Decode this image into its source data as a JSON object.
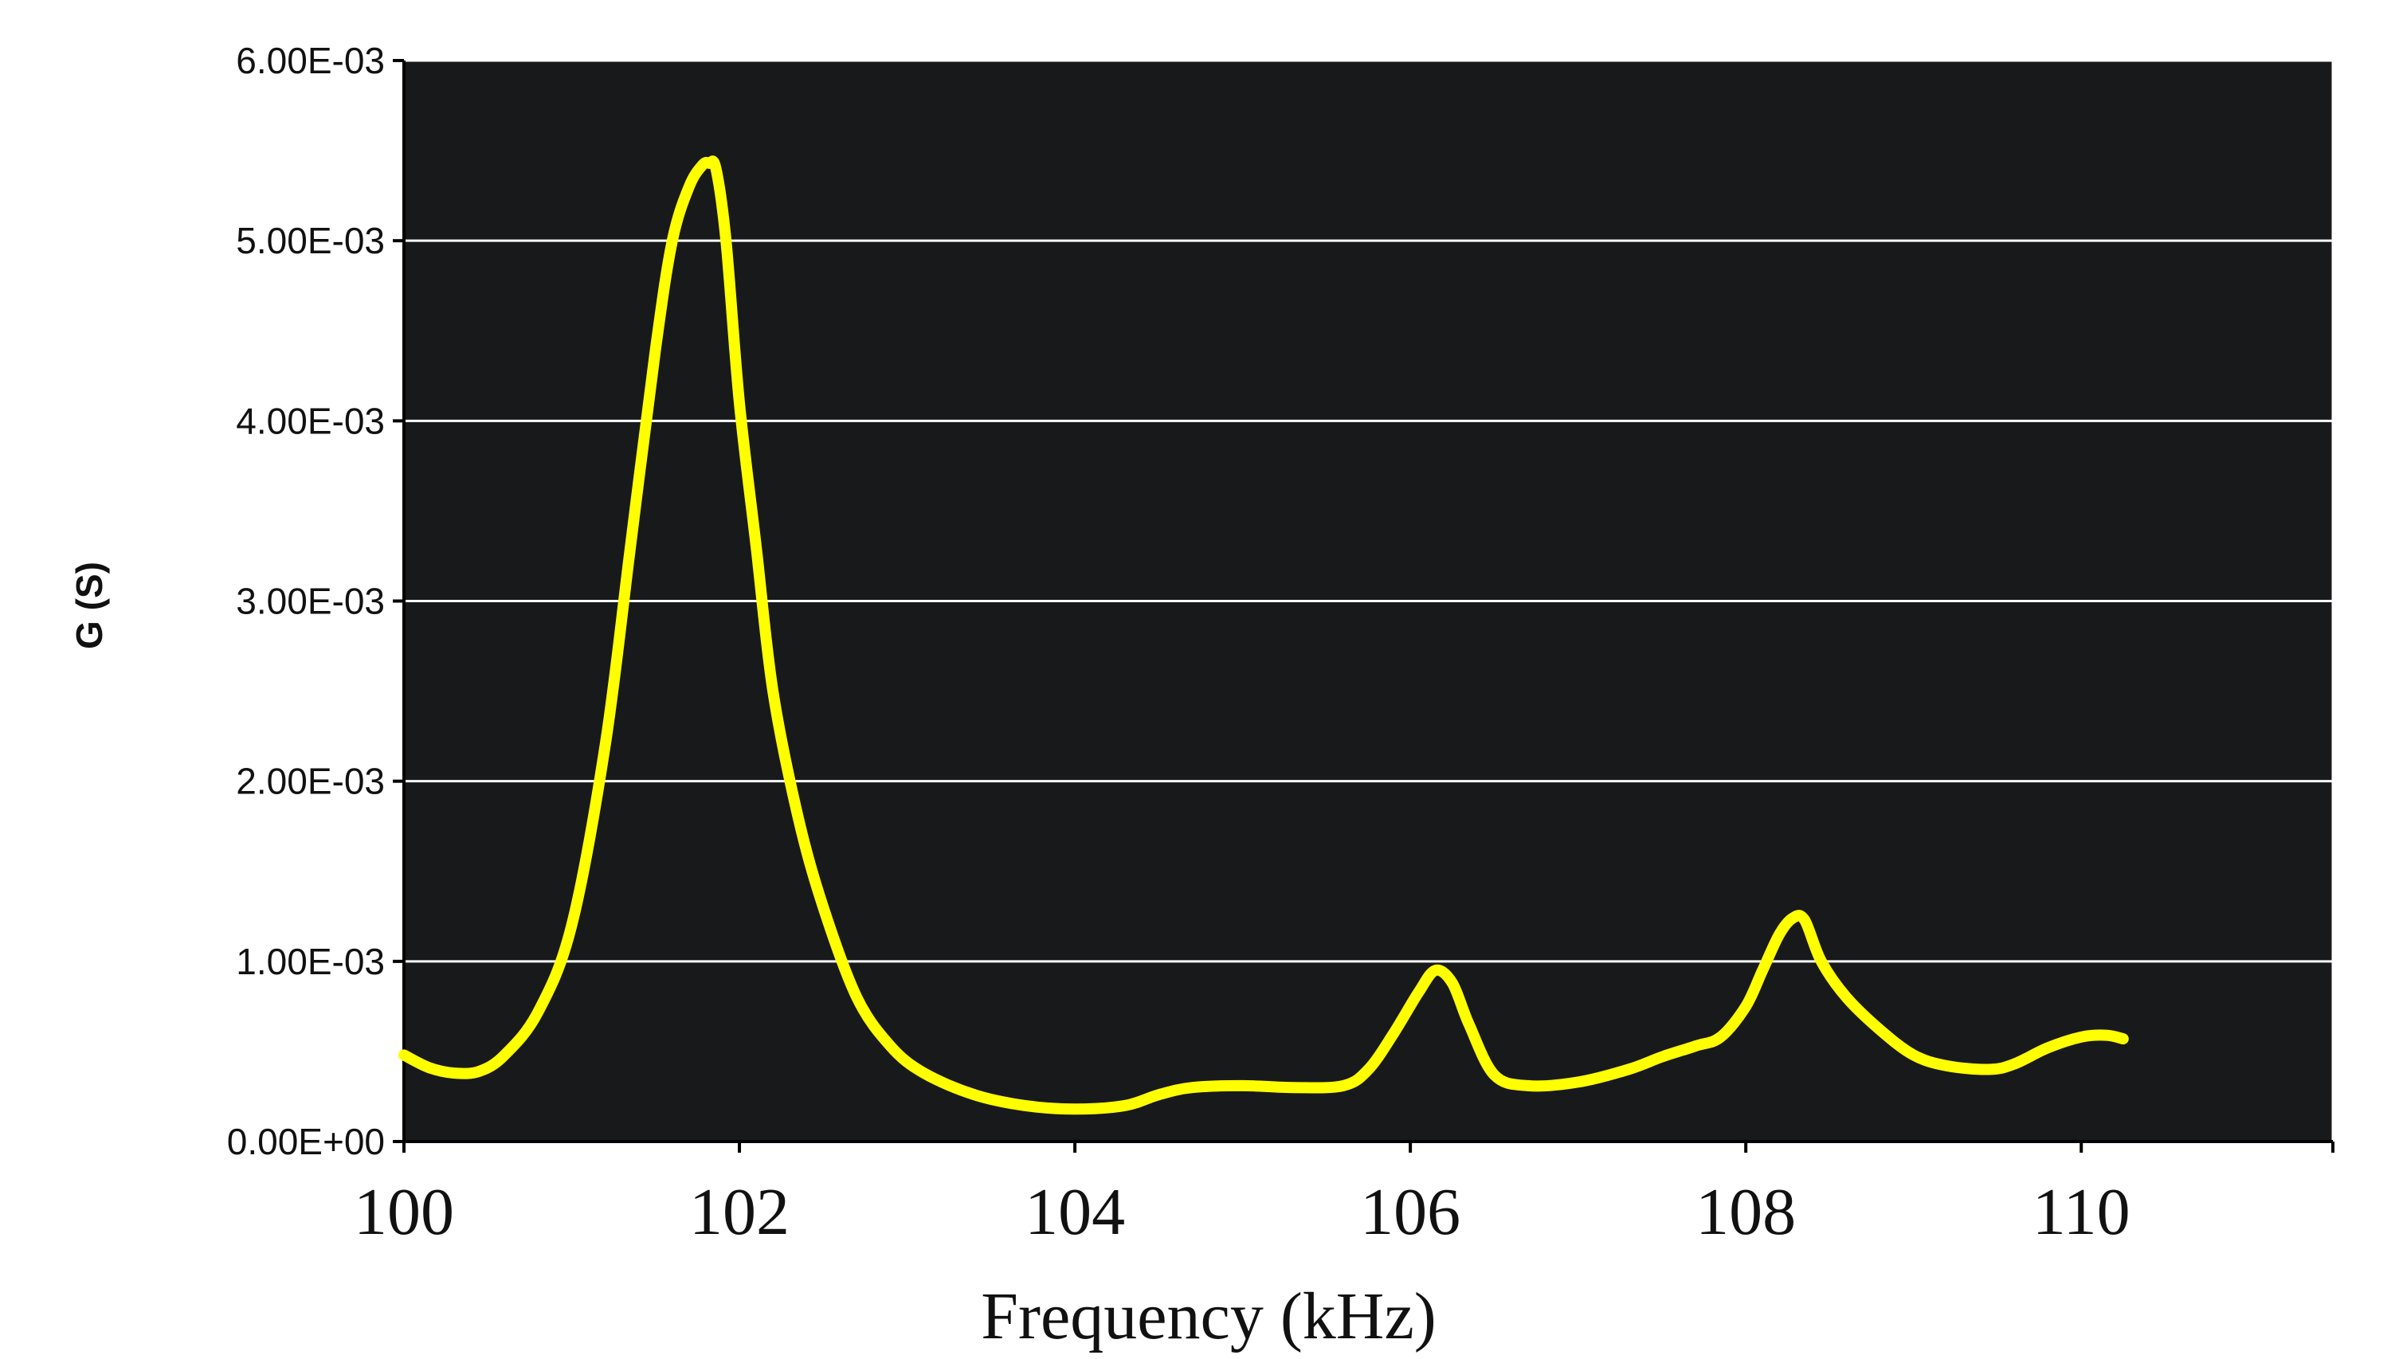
{
  "chart_data": {
    "type": "line",
    "title": "",
    "xlabel": "Frequency (kHz)",
    "ylabel": "G (S)",
    "xlim": [
      100,
      111.5
    ],
    "ylim": [
      0,
      0.006
    ],
    "x_ticks": [
      100,
      102,
      104,
      106,
      108,
      110
    ],
    "x_tick_labels": [
      "100",
      "102",
      "104",
      "106",
      "108",
      "110"
    ],
    "y_ticks": [
      0,
      0.001,
      0.002,
      0.003,
      0.004,
      0.005,
      0.006
    ],
    "y_tick_labels": [
      "0.00E+00",
      "1.00E-03",
      "2.00E-03",
      "3.00E-03",
      "4.00E-03",
      "5.00E-03",
      "6.00E-03"
    ],
    "grid": true,
    "legend": false,
    "colors": {
      "plot_background": "#18191b",
      "grid": "#ffffff",
      "line": "#ffff00",
      "text": "#111111"
    },
    "series": [
      {
        "x": [
          100.0,
          100.15,
          100.3,
          100.45,
          100.6,
          100.8,
          101.0,
          101.2,
          101.35,
          101.5,
          101.6,
          101.7,
          101.78,
          101.82,
          101.86,
          101.92,
          102.0,
          102.1,
          102.2,
          102.35,
          102.5,
          102.7,
          102.9,
          103.1,
          103.4,
          103.7,
          104.0,
          104.3,
          104.5,
          104.7,
          105.0,
          105.3,
          105.6,
          105.75,
          105.9,
          106.05,
          106.15,
          106.25,
          106.35,
          106.5,
          106.7,
          107.0,
          107.3,
          107.5,
          107.7,
          107.85,
          108.0,
          108.1,
          108.2,
          108.28,
          108.35,
          108.45,
          108.6,
          108.8,
          109.0,
          109.2,
          109.45,
          109.6,
          109.8,
          110.0,
          110.15,
          110.25
        ],
        "y": [
          0.00048,
          0.00041,
          0.00038,
          0.00039,
          0.00048,
          0.00072,
          0.0012,
          0.0022,
          0.0033,
          0.0044,
          0.005,
          0.0053,
          0.00542,
          0.00543,
          0.0054,
          0.005,
          0.0041,
          0.0033,
          0.0025,
          0.0018,
          0.0013,
          0.0008,
          0.00053,
          0.00038,
          0.00026,
          0.0002,
          0.00018,
          0.0002,
          0.00026,
          0.0003,
          0.00031,
          0.0003,
          0.00031,
          0.0004,
          0.0006,
          0.00083,
          0.00095,
          0.00088,
          0.00065,
          0.00037,
          0.00031,
          0.00033,
          0.0004,
          0.00047,
          0.00053,
          0.00058,
          0.00075,
          0.00095,
          0.00115,
          0.00124,
          0.00123,
          0.001,
          0.0008,
          0.00062,
          0.00048,
          0.00042,
          0.0004,
          0.00043,
          0.00052,
          0.00058,
          0.00059,
          0.00057
        ]
      }
    ]
  }
}
